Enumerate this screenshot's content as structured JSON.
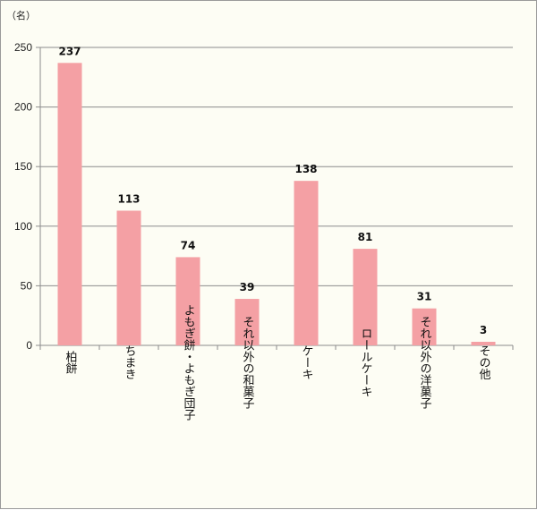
{
  "chart_data": {
    "type": "bar",
    "unit_label": "（名）",
    "categories": [
      "柏餅",
      "ちまき",
      "よもぎ餅・よもぎ団子",
      "それ以外の和菓子",
      "ケーキ",
      "ロールケーキ",
      "それ以外の洋菓子",
      "その他"
    ],
    "values": [
      237,
      113,
      74,
      39,
      138,
      81,
      31,
      3
    ],
    "ylim": [
      0,
      250
    ],
    "yticks": [
      0,
      50,
      100,
      150,
      200,
      250
    ],
    "grid": true,
    "legend": "none",
    "bar_color": "#f4a0a4",
    "grid_color": "#8c8c8c",
    "background_color": "#fdfdf4"
  }
}
